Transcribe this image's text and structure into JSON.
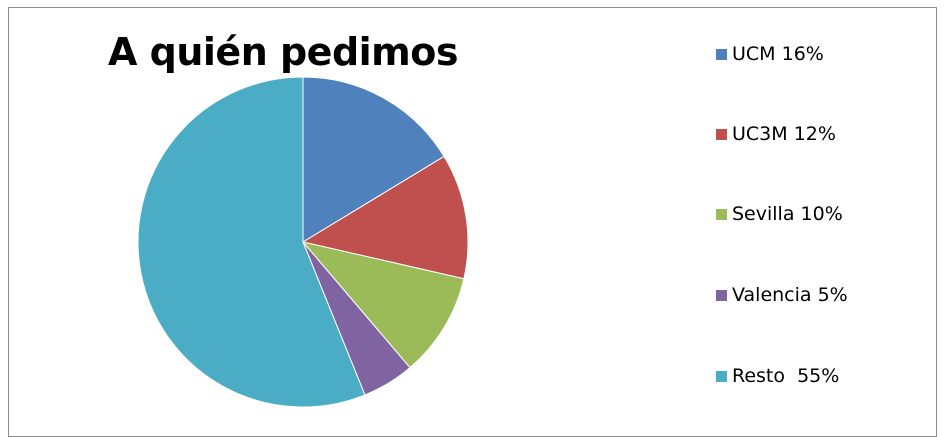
{
  "chart_data": {
    "type": "pie",
    "title": "A quién pedimos",
    "categories": [
      "UCM",
      "UC3M",
      "Sevilla",
      "Valencia",
      "Resto"
    ],
    "values": [
      16,
      12,
      10,
      5,
      55
    ],
    "legend_labels": [
      "UCM 16%",
      "UC3M 12%",
      "Sevilla 10%",
      "Valencia 5%",
      "Resto  55%"
    ],
    "colors": [
      "#4f81bd",
      "#c0504d",
      "#9bbb59",
      "#8064a2",
      "#4bacc6"
    ],
    "legend_position": "right",
    "start_angle": "12 o'clock, clockwise"
  }
}
